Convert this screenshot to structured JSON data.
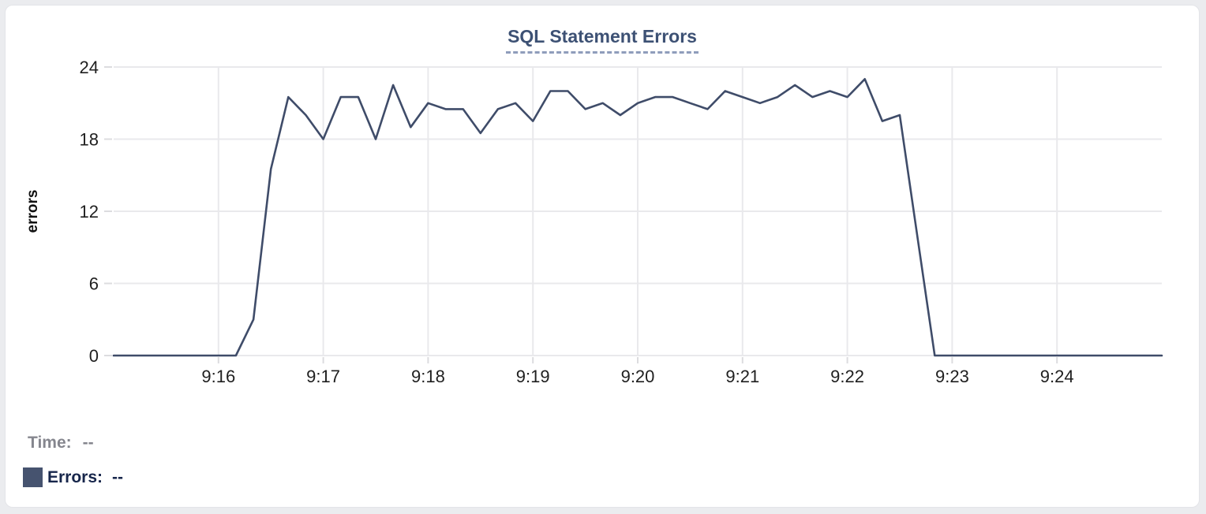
{
  "card": {
    "title": "SQL Statement Errors"
  },
  "chart_data": {
    "type": "line",
    "title": "SQL Statement Errors",
    "xlabel": "",
    "ylabel": "errors",
    "ylim": [
      0,
      24
    ],
    "y_ticks": [
      0,
      6,
      12,
      18,
      24
    ],
    "x_ticks": [
      "9:16",
      "9:17",
      "9:18",
      "9:19",
      "9:20",
      "9:21",
      "9:22",
      "9:23",
      "9:24"
    ],
    "x_domain": [
      "9:15:00",
      "9:25:00"
    ],
    "grid": true,
    "legend_position": "bottom-left",
    "colors": {
      "line": "#3f4c69",
      "grid": "#e9e9ec",
      "tick": "#dcdcdf",
      "label": "#1f1f1f"
    },
    "points": [
      [
        "9:15:00",
        0
      ],
      [
        "9:15:10",
        0
      ],
      [
        "9:15:20",
        0
      ],
      [
        "9:15:30",
        0
      ],
      [
        "9:15:40",
        0
      ],
      [
        "9:15:50",
        0
      ],
      [
        "9:16:00",
        0
      ],
      [
        "9:16:10",
        0
      ],
      [
        "9:16:20",
        3
      ],
      [
        "9:16:30",
        15.5
      ],
      [
        "9:16:40",
        21.5
      ],
      [
        "9:16:50",
        20
      ],
      [
        "9:17:00",
        18
      ],
      [
        "9:17:10",
        21.5
      ],
      [
        "9:17:20",
        21.5
      ],
      [
        "9:17:30",
        18
      ],
      [
        "9:17:40",
        22.5
      ],
      [
        "9:17:50",
        19
      ],
      [
        "9:18:00",
        21
      ],
      [
        "9:18:10",
        20.5
      ],
      [
        "9:18:20",
        20.5
      ],
      [
        "9:18:30",
        18.5
      ],
      [
        "9:18:40",
        20.5
      ],
      [
        "9:18:50",
        21
      ],
      [
        "9:19:00",
        19.5
      ],
      [
        "9:19:10",
        22
      ],
      [
        "9:19:20",
        22
      ],
      [
        "9:19:30",
        20.5
      ],
      [
        "9:19:40",
        21
      ],
      [
        "9:19:50",
        20
      ],
      [
        "9:20:00",
        21
      ],
      [
        "9:20:10",
        21.5
      ],
      [
        "9:20:20",
        21.5
      ],
      [
        "9:20:30",
        21
      ],
      [
        "9:20:40",
        20.5
      ],
      [
        "9:20:50",
        22
      ],
      [
        "9:21:00",
        21.5
      ],
      [
        "9:21:10",
        21
      ],
      [
        "9:21:20",
        21.5
      ],
      [
        "9:21:30",
        22.5
      ],
      [
        "9:21:40",
        21.5
      ],
      [
        "9:21:50",
        22
      ],
      [
        "9:22:00",
        21.5
      ],
      [
        "9:22:10",
        23
      ],
      [
        "9:22:20",
        19.5
      ],
      [
        "9:22:30",
        20
      ],
      [
        "9:22:40",
        10
      ],
      [
        "9:22:50",
        0
      ],
      [
        "9:23:00",
        0
      ],
      [
        "9:23:10",
        0
      ],
      [
        "9:23:20",
        0
      ],
      [
        "9:23:30",
        0
      ],
      [
        "9:23:40",
        0
      ],
      [
        "9:23:50",
        0
      ],
      [
        "9:24:00",
        0
      ],
      [
        "9:24:10",
        0
      ],
      [
        "9:24:20",
        0
      ],
      [
        "9:24:30",
        0
      ],
      [
        "9:24:40",
        0
      ],
      [
        "9:24:50",
        0
      ],
      [
        "9:25:00",
        0
      ]
    ]
  },
  "legend": {
    "time_label": "Time:",
    "time_value": "--",
    "errors_label": "Errors:",
    "errors_value": "--",
    "swatch_color": "#46536f"
  }
}
